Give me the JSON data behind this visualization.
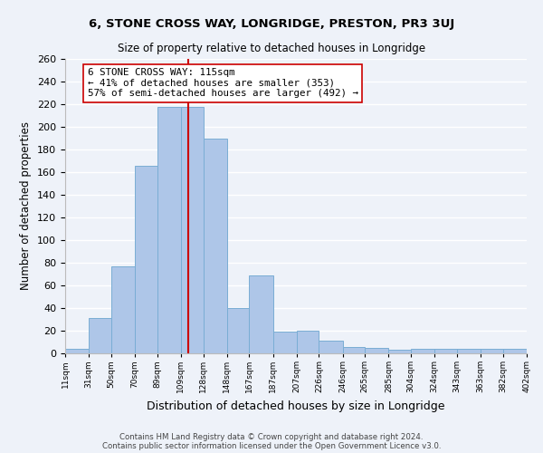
{
  "title": "6, STONE CROSS WAY, LONGRIDGE, PRESTON, PR3 3UJ",
  "subtitle": "Size of property relative to detached houses in Longridge",
  "xlabel": "Distribution of detached houses by size in Longridge",
  "ylabel": "Number of detached properties",
  "bar_edges": [
    11,
    31,
    50,
    70,
    89,
    109,
    128,
    148,
    167,
    187,
    207,
    226,
    246,
    265,
    285,
    304,
    324,
    343,
    363,
    382,
    402
  ],
  "bar_heights": [
    4,
    31,
    77,
    166,
    218,
    218,
    190,
    40,
    69,
    19,
    20,
    11,
    6,
    5,
    3,
    4,
    4,
    4,
    4,
    4
  ],
  "bar_color": "#aec6e8",
  "bar_edge_color": "#7aadd4",
  "vline_x": 115,
  "vline_color": "#cc0000",
  "annotation_title": "6 STONE CROSS WAY: 115sqm",
  "annotation_line1": "← 41% of detached houses are smaller (353)",
  "annotation_line2": "57% of semi-detached houses are larger (492) →",
  "annotation_box_color": "#ffffff",
  "annotation_box_edge": "#cc0000",
  "tick_labels": [
    "11sqm",
    "31sqm",
    "50sqm",
    "70sqm",
    "89sqm",
    "109sqm",
    "128sqm",
    "148sqm",
    "167sqm",
    "187sqm",
    "207sqm",
    "226sqm",
    "246sqm",
    "265sqm",
    "285sqm",
    "304sqm",
    "324sqm",
    "343sqm",
    "363sqm",
    "382sqm",
    "402sqm"
  ],
  "ylim": [
    0,
    260
  ],
  "yticks": [
    0,
    20,
    40,
    60,
    80,
    100,
    120,
    140,
    160,
    180,
    200,
    220,
    240,
    260
  ],
  "footer1": "Contains HM Land Registry data © Crown copyright and database right 2024.",
  "footer2": "Contains public sector information licensed under the Open Government Licence v3.0.",
  "bg_color": "#eef2f9"
}
